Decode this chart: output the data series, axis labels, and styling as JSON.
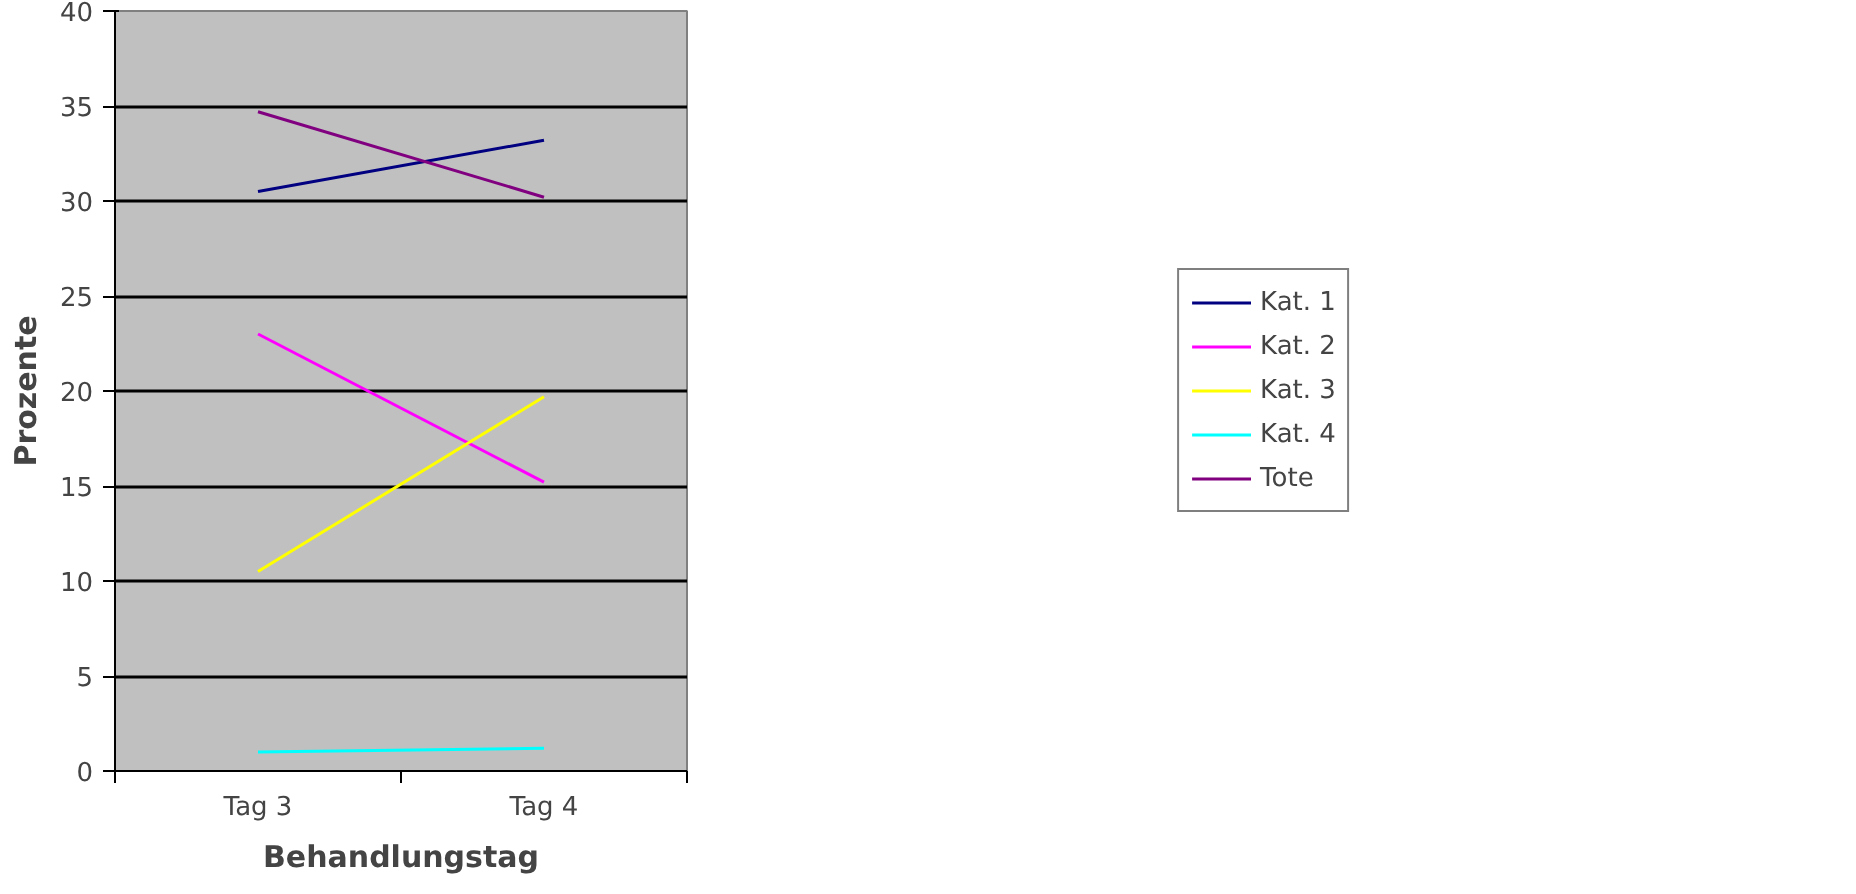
{
  "chart_data": {
    "type": "line",
    "xlabel": "Behandlungstag",
    "ylabel": "Prozente",
    "categories": [
      "Tag 3",
      "Tag 4"
    ],
    "series": [
      {
        "name": "Kat. 1",
        "color": "#000080",
        "values": [
          30.5,
          33.2
        ]
      },
      {
        "name": "Kat. 2",
        "color": "#ff00ff",
        "values": [
          23.0,
          15.2
        ]
      },
      {
        "name": "Kat. 3",
        "color": "#ffff00",
        "values": [
          10.5,
          19.7
        ]
      },
      {
        "name": "Kat. 4",
        "color": "#00ffff",
        "values": [
          1.0,
          1.2
        ]
      },
      {
        "name": "Tote",
        "color": "#800080",
        "values": [
          34.7,
          30.2
        ]
      }
    ],
    "ylim": [
      0,
      40
    ],
    "yticks": [
      0,
      5,
      10,
      15,
      20,
      25,
      30,
      35,
      40
    ],
    "grid": "y",
    "legend": "right",
    "marker": "none",
    "line_style": "solid"
  }
}
